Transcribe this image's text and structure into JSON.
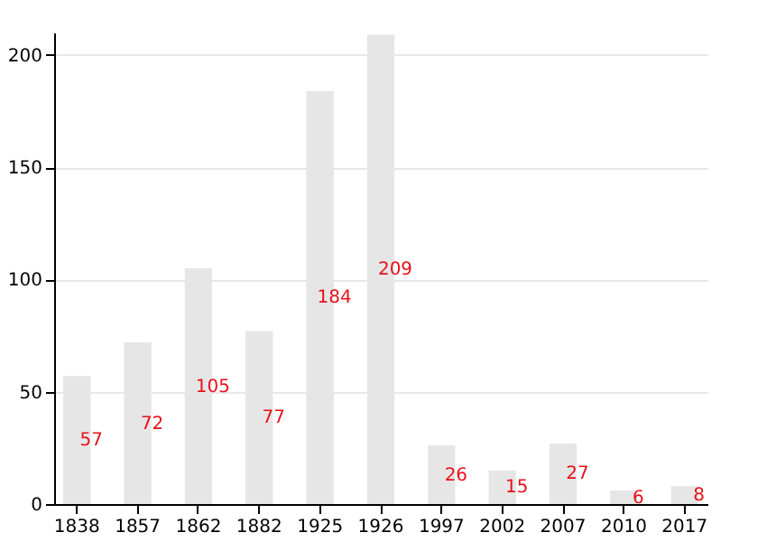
{
  "chart_data": {
    "type": "bar",
    "categories": [
      "1838",
      "1857",
      "1862",
      "1882",
      "1925",
      "1926",
      "1997",
      "2002",
      "2007",
      "2010",
      "2017"
    ],
    "values": [
      57,
      72,
      105,
      77,
      184,
      209,
      26,
      15,
      27,
      6,
      8
    ],
    "color": "#e6e6e6",
    "data_labels": true,
    "ylim": [
      0,
      210
    ],
    "yticks": [
      0,
      50,
      100,
      150,
      200
    ],
    "grid": "y"
  }
}
